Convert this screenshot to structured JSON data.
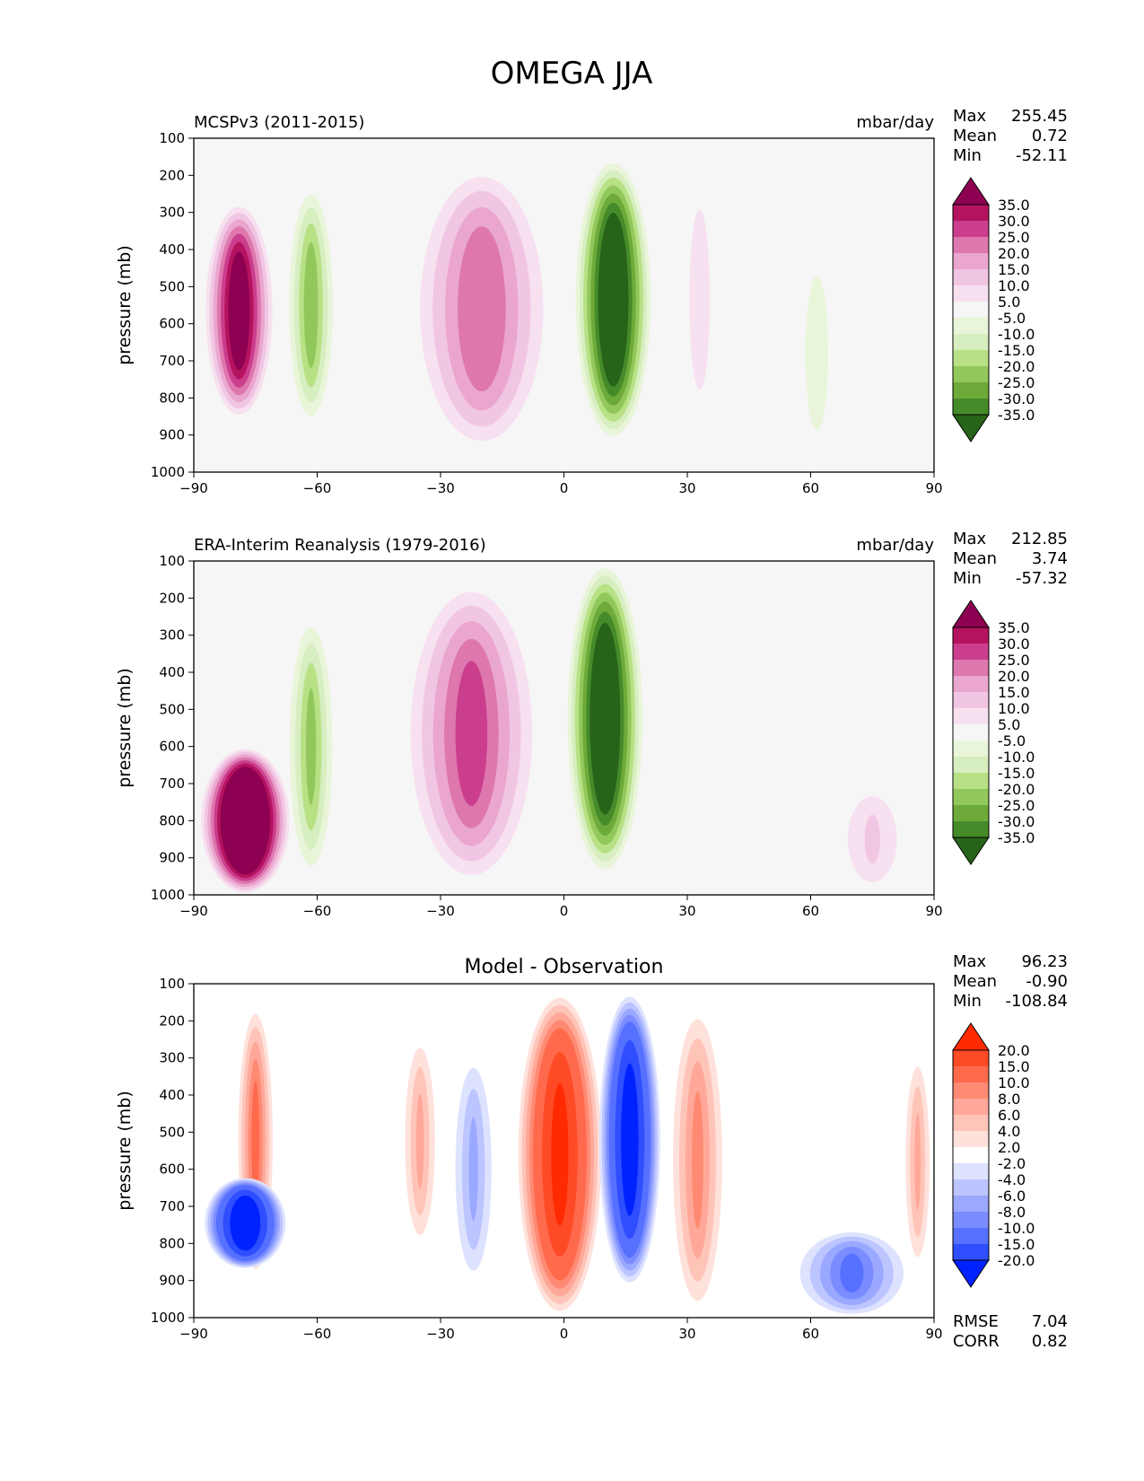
{
  "figure": {
    "title": "OMEGA JJA"
  },
  "x_ticks": [
    "−90",
    "−60",
    "−30",
    "0",
    "30",
    "60",
    "90"
  ],
  "y_ticks": [
    "100",
    "200",
    "300",
    "400",
    "500",
    "600",
    "700",
    "800",
    "900",
    "1000"
  ],
  "ylabel": "pressure (mb)",
  "panels": [
    {
      "left_title": "MCSPv3 (2011-2015)",
      "center_title": "",
      "units": "mbar/day",
      "stats": [
        {
          "label": "Max",
          "value": "255.45"
        },
        {
          "label": "Mean",
          "value": "0.72"
        },
        {
          "label": "Min",
          "value": "-52.11"
        }
      ],
      "colorbar": {
        "labels": [
          "35.0",
          "30.0",
          "25.0",
          "20.0",
          "15.0",
          "10.0",
          "5.0",
          "-5.0",
          "-10.0",
          "-15.0",
          "-20.0",
          "-25.0",
          "-30.0",
          "-35.0"
        ],
        "colors": [
          "#8e0152",
          "#b5135f",
          "#cb3e8d",
          "#de77ae",
          "#eaa6cf",
          "#f1c6e3",
          "#f7e0ef",
          "#f6f6f6",
          "#e9f5d9",
          "#d7eec0",
          "#b8e186",
          "#92c85b",
          "#6daa3a",
          "#468b2a",
          "#276419"
        ]
      }
    },
    {
      "left_title": "ERA-Interim Reanalysis (1979-2016)",
      "center_title": "",
      "units": "mbar/day",
      "stats": [
        {
          "label": "Max",
          "value": "212.85"
        },
        {
          "label": "Mean",
          "value": "3.74"
        },
        {
          "label": "Min",
          "value": "-57.32"
        }
      ],
      "colorbar": {
        "labels": [
          "35.0",
          "30.0",
          "25.0",
          "20.0",
          "15.0",
          "10.0",
          "5.0",
          "-5.0",
          "-10.0",
          "-15.0",
          "-20.0",
          "-25.0",
          "-30.0",
          "-35.0"
        ],
        "colors": [
          "#8e0152",
          "#b5135f",
          "#cb3e8d",
          "#de77ae",
          "#eaa6cf",
          "#f1c6e3",
          "#f7e0ef",
          "#f6f6f6",
          "#e9f5d9",
          "#d7eec0",
          "#b8e186",
          "#92c85b",
          "#6daa3a",
          "#468b2a",
          "#276419"
        ]
      }
    },
    {
      "left_title": "",
      "center_title": "Model - Observation",
      "units": "",
      "stats": [
        {
          "label": "Max",
          "value": "96.23"
        },
        {
          "label": "Mean",
          "value": "-0.90"
        },
        {
          "label": "Min",
          "value": "-108.84"
        }
      ],
      "metrics": [
        {
          "label": "RMSE",
          "value": "7.04"
        },
        {
          "label": "CORR",
          "value": "0.82"
        }
      ],
      "colorbar": {
        "labels": [
          "20.0",
          "15.0",
          "10.0",
          "8.0",
          "6.0",
          "4.0",
          "2.0",
          "-2.0",
          "-4.0",
          "-6.0",
          "-8.0",
          "-10.0",
          "-15.0",
          "-20.0"
        ],
        "colors": [
          "#ff2a00",
          "#ff4a26",
          "#ff6a4d",
          "#ff8a73",
          "#ffa899",
          "#ffc4b8",
          "#ffe1db",
          "#ffffff",
          "#dde2ff",
          "#bcc5ff",
          "#9aa8ff",
          "#7a8cff",
          "#5670ff",
          "#2e4eff",
          "#0022ff"
        ]
      }
    }
  ],
  "chart_data": [
    {
      "type": "heatmap",
      "title": "MCSPv3 (2011-2015)",
      "units": "mbar/day",
      "xlabel": "",
      "ylabel": "pressure (mb)",
      "xlim": [
        -90,
        90
      ],
      "ylim": [
        1000,
        100
      ],
      "stats": {
        "max": 255.45,
        "mean": 0.72,
        "min": -52.11
      },
      "levels": [
        -35,
        -30,
        -25,
        -20,
        -15,
        -10,
        -5,
        5,
        10,
        15,
        20,
        25,
        30,
        35
      ],
      "features": [
        {
          "lat": [
            -88,
            -70
          ],
          "p": [
            270,
            860
          ],
          "peak": 40
        },
        {
          "lat": [
            -68,
            -55
          ],
          "p": [
            220,
            880
          ],
          "peak": -22
        },
        {
          "lat": [
            -38,
            -2
          ],
          "p": [
            170,
            950
          ],
          "peak": 24
        },
        {
          "lat": [
            2,
            22
          ],
          "p": [
            150,
            920
          ],
          "peak": -45
        },
        {
          "lat": [
            28,
            38
          ],
          "p": [
            190,
            880
          ],
          "peak": 8
        },
        {
          "lat": [
            55,
            68
          ],
          "p": [
            360,
            1000
          ],
          "peak": -7
        }
      ]
    },
    {
      "type": "heatmap",
      "title": "ERA-Interim Reanalysis (1979-2016)",
      "units": "mbar/day",
      "xlabel": "",
      "ylabel": "pressure (mb)",
      "xlim": [
        -90,
        90
      ],
      "ylim": [
        1000,
        100
      ],
      "stats": {
        "max": 212.85,
        "mean": 3.74,
        "min": -57.32
      },
      "levels": [
        -35,
        -30,
        -25,
        -20,
        -15,
        -10,
        -5,
        5,
        10,
        15,
        20,
        25,
        30,
        35
      ],
      "features": [
        {
          "lat": [
            -89,
            -66
          ],
          "p": [
            600,
            1000
          ],
          "peak": 60
        },
        {
          "lat": [
            -68,
            -55
          ],
          "p": [
            240,
            960
          ],
          "peak": -20
        },
        {
          "lat": [
            -40,
            -5
          ],
          "p": [
            150,
            980
          ],
          "peak": 26
        },
        {
          "lat": [
            0,
            20
          ],
          "p": [
            100,
            950
          ],
          "peak": -45
        },
        {
          "lat": [
            65,
            85
          ],
          "p": [
            700,
            1000
          ],
          "peak": 10
        }
      ]
    },
    {
      "type": "heatmap",
      "title": "Model - Observation",
      "units": "",
      "xlabel": "",
      "ylabel": "pressure (mb)",
      "xlim": [
        -90,
        90
      ],
      "ylim": [
        1000,
        100
      ],
      "stats": {
        "max": 96.23,
        "mean": -0.9,
        "min": -108.84,
        "rmse": 7.04,
        "corr": 0.82
      },
      "levels": [
        -20,
        -15,
        -10,
        -8,
        -6,
        -4,
        -2,
        2,
        4,
        6,
        8,
        10,
        15,
        20
      ],
      "features": [
        {
          "lat": [
            -80,
            -70
          ],
          "p": [
            150,
            900
          ],
          "peak": 10
        },
        {
          "lat": [
            -88,
            -67
          ],
          "p": [
            620,
            870
          ],
          "peak": -25
        },
        {
          "lat": [
            -40,
            -30
          ],
          "p": [
            230,
            820
          ],
          "peak": 6
        },
        {
          "lat": [
            -28,
            -16
          ],
          "p": [
            280,
            920
          ],
          "peak": -6
        },
        {
          "lat": [
            -12,
            10
          ],
          "p": [
            120,
            1000
          ],
          "peak": 20
        },
        {
          "lat": [
            8,
            24
          ],
          "p": [
            120,
            920
          ],
          "peak": -22
        },
        {
          "lat": [
            25,
            40
          ],
          "p": [
            150,
            1000
          ],
          "peak": 8
        },
        {
          "lat": [
            55,
            85
          ],
          "p": [
            760,
            1000
          ],
          "peak": -10
        },
        {
          "lat": [
            82,
            90
          ],
          "p": [
            280,
            880
          ],
          "peak": 6
        }
      ]
    }
  ]
}
